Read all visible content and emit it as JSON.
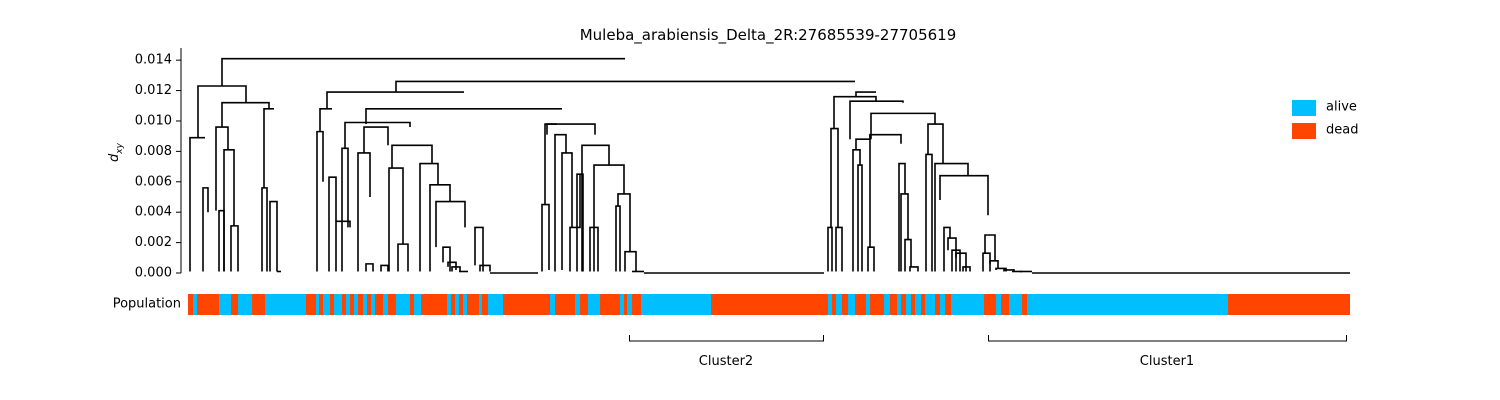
{
  "chart_data": {
    "type": "dendrogram",
    "title": "Muleba_arabiensis_Delta_2R:27685539-27705619",
    "ylabel_main": "d",
    "ylabel_sub": "xy",
    "ylim": [
      0,
      0.0148
    ],
    "yticks": [
      "0.000",
      "0.002",
      "0.004",
      "0.006",
      "0.008",
      "0.010",
      "0.012",
      "0.014"
    ],
    "ytick_values": [
      0,
      0.002,
      0.004,
      0.006,
      0.008,
      0.01,
      0.012,
      0.014
    ],
    "legend_position": "right",
    "legend": [
      {
        "label": "alive",
        "color": "#00BFFF"
      },
      {
        "label": "dead",
        "color": "#FF4500"
      }
    ],
    "population_label": "Population",
    "clusters": [
      {
        "label": "Cluster2"
      },
      {
        "label": "Cluster1"
      }
    ]
  }
}
